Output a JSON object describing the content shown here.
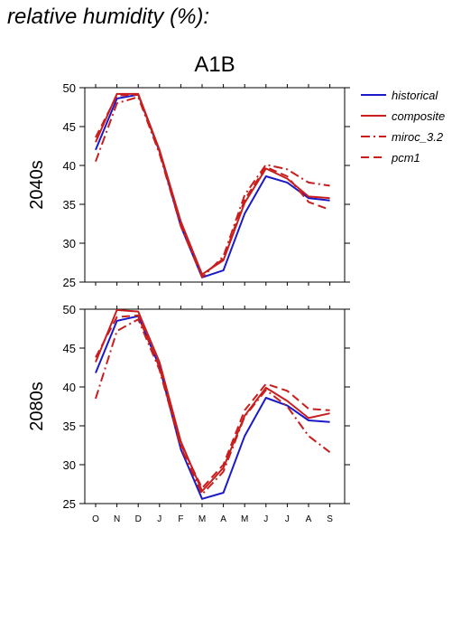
{
  "figure": {
    "title": "relative humidity (%):",
    "scenario": "A1B"
  },
  "chart_data": {
    "type": "line",
    "x": [
      "O",
      "N",
      "D",
      "J",
      "F",
      "M",
      "A",
      "M",
      "J",
      "J",
      "A",
      "S"
    ],
    "ylim": [
      25,
      50
    ],
    "yticks": [
      25,
      30,
      35,
      40,
      45,
      50
    ],
    "grid": false,
    "legend_position": "right",
    "legend": [
      {
        "name": "historical",
        "color": "#1a1ac8",
        "dash": "solid"
      },
      {
        "name": "composite",
        "color": "#c81e1e",
        "dash": "solid"
      },
      {
        "name": "miroc_3.2",
        "color": "#c81e1e",
        "dash": "dashdot"
      },
      {
        "name": "pcm1",
        "color": "#c81e1e",
        "dash": "dashed"
      }
    ],
    "panels": [
      {
        "label": "2040s",
        "series": [
          {
            "name": "historical",
            "values": [
              42.0,
              48.6,
              49.1,
              41.8,
              32.2,
              25.6,
              26.5,
              33.8,
              38.6,
              37.8,
              35.8,
              35.5
            ]
          },
          {
            "name": "composite",
            "values": [
              43.0,
              49.2,
              49.2,
              42.0,
              32.8,
              26.0,
              27.8,
              35.2,
              39.6,
              38.3,
              36.0,
              35.8
            ]
          },
          {
            "name": "miroc_3.2",
            "values": [
              40.5,
              48.0,
              48.8,
              41.5,
              32.2,
              25.6,
              28.3,
              36.2,
              40.1,
              39.5,
              37.8,
              37.4
            ]
          },
          {
            "name": "pcm1",
            "values": [
              43.6,
              49.0,
              49.1,
              41.8,
              32.5,
              25.9,
              28.0,
              35.6,
              39.8,
              38.6,
              35.3,
              34.3
            ]
          }
        ]
      },
      {
        "label": "2080s",
        "series": [
          {
            "name": "historical",
            "values": [
              41.8,
              48.5,
              49.1,
              42.6,
              32.0,
              25.6,
              26.4,
              33.7,
              38.6,
              37.6,
              35.7,
              35.5
            ]
          },
          {
            "name": "composite",
            "values": [
              43.2,
              49.9,
              49.7,
              43.2,
              33.0,
              26.6,
              29.6,
              36.3,
              39.9,
              38.2,
              36.0,
              36.6
            ]
          },
          {
            "name": "miroc_3.2",
            "values": [
              38.5,
              47.2,
              48.7,
              42.2,
              32.3,
              26.2,
              29.1,
              36.2,
              39.6,
              37.5,
              33.7,
              31.6
            ]
          },
          {
            "name": "pcm1",
            "values": [
              43.8,
              49.0,
              49.2,
              42.5,
              32.6,
              27.0,
              30.0,
              37.0,
              40.4,
              39.5,
              37.2,
              37.0
            ]
          }
        ]
      }
    ]
  }
}
